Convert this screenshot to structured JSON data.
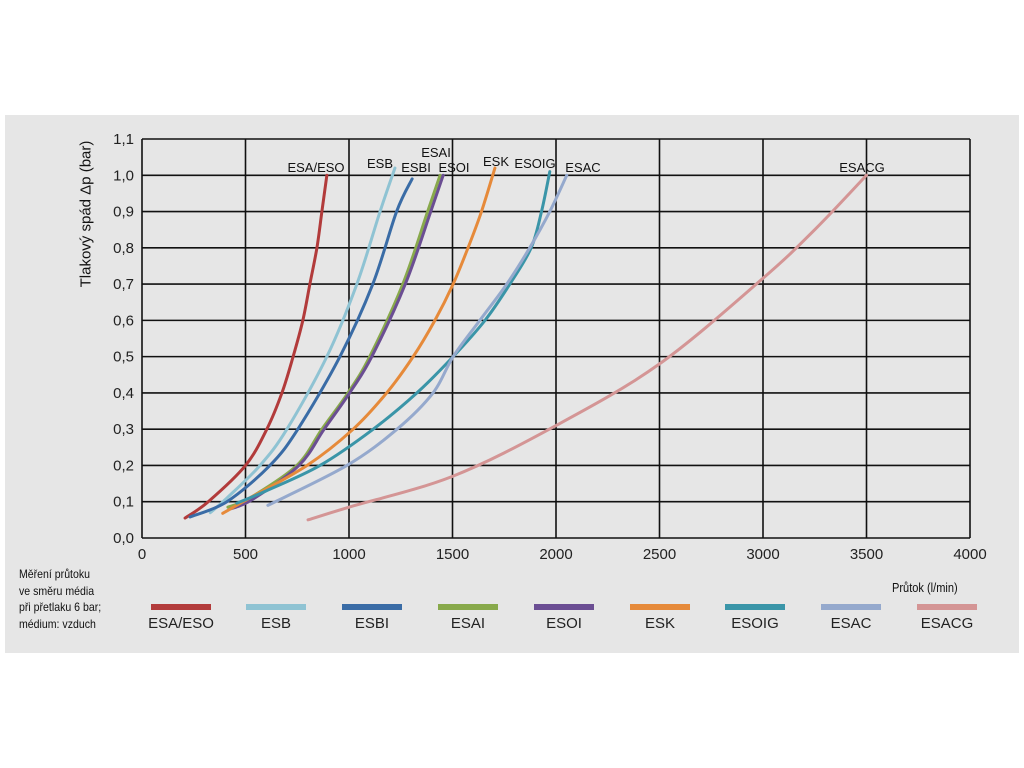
{
  "chart_data": {
    "type": "line",
    "ylabel": "Tlakový spád Δp (bar)",
    "xlabel": "Průtok (l/min)",
    "note": [
      "Měření průtoku",
      "ve směru média",
      "při přetlaku 6 bar;",
      "médium: vzduch"
    ],
    "xlim": [
      0,
      4000
    ],
    "ylim": [
      0,
      1.1
    ],
    "x_ticks": [
      "0",
      "500",
      "1000",
      "1500",
      "2000",
      "2500",
      "3000",
      "3500",
      "4000"
    ],
    "y_ticks": [
      "0,0",
      "0,1",
      "0,2",
      "0,3",
      "0,4",
      "0,5",
      "0,6",
      "0,7",
      "0,8",
      "0,9",
      "1,0",
      "1,1"
    ],
    "grid": true,
    "legend_position": "bottom",
    "series": [
      {
        "name": "ESA/ESO",
        "color": "#b23b3b",
        "points": [
          [
            208,
            0.055
          ],
          [
            320,
            0.1
          ],
          [
            500,
            0.2
          ],
          [
            603,
            0.3
          ],
          [
            676,
            0.4
          ],
          [
            730,
            0.5
          ],
          [
            777,
            0.6
          ],
          [
            811,
            0.7
          ],
          [
            845,
            0.8
          ],
          [
            869,
            0.9
          ],
          [
            893,
            1.0
          ]
        ]
      },
      {
        "name": "ESB",
        "color": "#8fc3d3",
        "points": [
          [
            330,
            0.07
          ],
          [
            410,
            0.11
          ],
          [
            570,
            0.2
          ],
          [
            700,
            0.3
          ],
          [
            893,
            0.5
          ],
          [
            1038,
            0.7
          ],
          [
            1150,
            0.9
          ],
          [
            1222,
            1.02
          ]
        ]
      },
      {
        "name": "ESBI",
        "color": "#3a6ca6",
        "points": [
          [
            232,
            0.058
          ],
          [
            410,
            0.1
          ],
          [
            618,
            0.2
          ],
          [
            753,
            0.3
          ],
          [
            956,
            0.5
          ],
          [
            1115,
            0.7
          ],
          [
            1230,
            0.9
          ],
          [
            1305,
            0.99
          ]
        ]
      },
      {
        "name": "ESAI",
        "color": "#88a94b",
        "points": [
          [
            415,
            0.085
          ],
          [
            520,
            0.11
          ],
          [
            748,
            0.2
          ],
          [
            869,
            0.3
          ],
          [
            995,
            0.4
          ],
          [
            1100,
            0.5
          ],
          [
            1260,
            0.7
          ],
          [
            1380,
            0.9
          ],
          [
            1440,
            1.0
          ]
        ]
      },
      {
        "name": "ESOI",
        "color": "#6b4e93",
        "points": [
          [
            425,
            0.08
          ],
          [
            530,
            0.105
          ],
          [
            758,
            0.2
          ],
          [
            880,
            0.3
          ],
          [
            1003,
            0.4
          ],
          [
            1110,
            0.5
          ],
          [
            1272,
            0.7
          ],
          [
            1395,
            0.9
          ],
          [
            1455,
            1.0
          ]
        ]
      },
      {
        "name": "ESK",
        "color": "#e68a3a",
        "points": [
          [
            390,
            0.068
          ],
          [
            488,
            0.1
          ],
          [
            797,
            0.2
          ],
          [
            1020,
            0.3
          ],
          [
            1182,
            0.4
          ],
          [
            1310,
            0.5
          ],
          [
            1415,
            0.6
          ],
          [
            1503,
            0.7
          ],
          [
            1575,
            0.8
          ],
          [
            1640,
            0.9
          ],
          [
            1705,
            1.02
          ]
        ]
      },
      {
        "name": "ESOIG",
        "color": "#3a95a8",
        "points": [
          [
            458,
            0.096
          ],
          [
            600,
            0.13
          ],
          [
            860,
            0.2
          ],
          [
            1117,
            0.3
          ],
          [
            1328,
            0.4
          ],
          [
            1503,
            0.5
          ],
          [
            1657,
            0.6
          ],
          [
            1777,
            0.7
          ],
          [
            1880,
            0.8
          ],
          [
            1930,
            0.9
          ],
          [
            1970,
            1.01
          ]
        ]
      },
      {
        "name": "ESAC",
        "color": "#95a9cd",
        "points": [
          [
            608,
            0.09
          ],
          [
            990,
            0.2
          ],
          [
            1232,
            0.3
          ],
          [
            1406,
            0.4
          ],
          [
            1503,
            0.5
          ],
          [
            1632,
            0.6
          ],
          [
            1762,
            0.7
          ],
          [
            1873,
            0.8
          ],
          [
            1970,
            0.9
          ],
          [
            2052,
            1.0
          ]
        ]
      },
      {
        "name": "ESACG",
        "color": "#d49595",
        "points": [
          [
            802,
            0.05
          ],
          [
            1000,
            0.085
          ],
          [
            1500,
            0.17
          ],
          [
            2000,
            0.31
          ],
          [
            2500,
            0.48
          ],
          [
            3000,
            0.716
          ],
          [
            3250,
            0.85
          ],
          [
            3500,
            1.0
          ]
        ]
      }
    ],
    "annotations": [
      "ESA/ESO",
      "ESB",
      "ESBI",
      "ESAI",
      "ESOI",
      "ESK",
      "ESOIG",
      "ESAC",
      "ESACG"
    ]
  }
}
